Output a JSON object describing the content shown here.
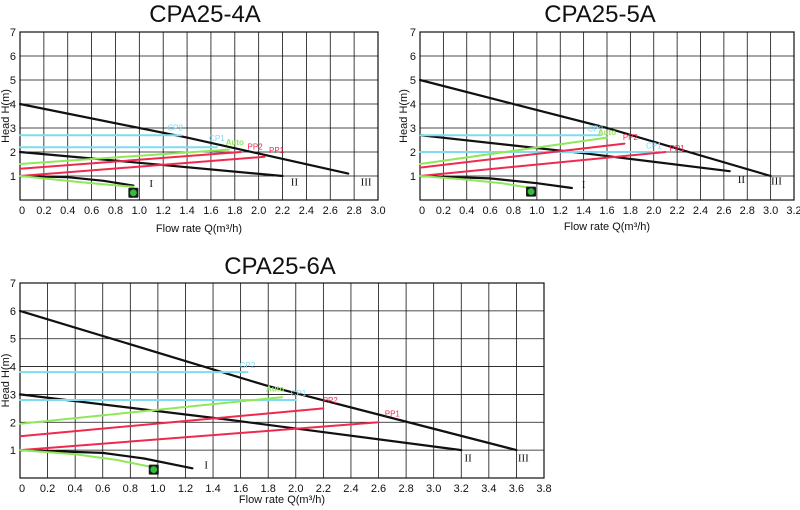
{
  "colors": {
    "speed_curve": "#111111",
    "cp": "#7fdcf0",
    "pp": "#ef2a4f",
    "auto": "#8fe85a",
    "grid": "#111111",
    "icon": "#2fbf3a"
  },
  "icons": [
    "green-led-icon"
  ],
  "chart_data": [
    {
      "type": "line",
      "title": "CPA25-4A",
      "xlabel": "Flow rate Q(m³/h)",
      "ylabel": "Head H(m)",
      "xlim": [
        0,
        3.0
      ],
      "ylim": [
        0,
        7
      ],
      "grid": true,
      "xticks": [
        "0",
        "0.2",
        "0.4",
        "0.6",
        "0.8",
        "1.0",
        "1.2",
        "1.4",
        "1.6",
        "1.8",
        "2.0",
        "2.2",
        "2.4",
        "2.6",
        "2.8",
        "3.0"
      ],
      "yticks": [
        "1",
        "2",
        "3",
        "4",
        "5",
        "6",
        "7"
      ],
      "series": [
        {
          "name": "I",
          "kind": "speed",
          "points": [
            [
              0,
              1.0
            ],
            [
              0.4,
              0.95
            ],
            [
              0.7,
              0.8
            ],
            [
              0.95,
              0.6
            ]
          ]
        },
        {
          "name": "II",
          "kind": "speed",
          "points": [
            [
              0,
              2.0
            ],
            [
              1.0,
              1.55
            ],
            [
              2.2,
              1.0
            ]
          ]
        },
        {
          "name": "III",
          "kind": "speed",
          "points": [
            [
              0,
              4.0
            ],
            [
              1.4,
              2.6
            ],
            [
              2.75,
              1.1
            ]
          ]
        },
        {
          "name": "CP2",
          "kind": "cp",
          "points": [
            [
              0,
              2.7
            ],
            [
              1.35,
              2.7
            ]
          ]
        },
        {
          "name": "CP1",
          "kind": "cp",
          "points": [
            [
              0,
              2.2
            ],
            [
              1.65,
              2.2
            ]
          ]
        },
        {
          "name": "Auto",
          "kind": "auto",
          "points": [
            [
              0,
              1.5
            ],
            [
              1.75,
              2.1
            ]
          ]
        },
        {
          "name": "PP2",
          "kind": "pp",
          "points": [
            [
              0,
              1.3
            ],
            [
              1.85,
              2.0
            ]
          ]
        },
        {
          "name": "PP1",
          "kind": "pp",
          "points": [
            [
              0,
              1.0
            ],
            [
              2.05,
              1.8
            ]
          ]
        },
        {
          "name": "",
          "kind": "auto",
          "points": [
            [
              0,
              1.0
            ],
            [
              0.3,
              0.85
            ],
            [
              0.6,
              0.7
            ],
            [
              0.95,
              0.55
            ]
          ]
        }
      ],
      "labels": [
        {
          "text": "CP2",
          "x": 1.3,
          "y": 2.9,
          "kind": "cp"
        },
        {
          "text": "CP1",
          "x": 1.65,
          "y": 2.45,
          "kind": "cp"
        },
        {
          "text": "Auto",
          "x": 1.8,
          "y": 2.3,
          "kind": "auto"
        },
        {
          "text": "PP2",
          "x": 1.97,
          "y": 2.1,
          "kind": "pp"
        },
        {
          "text": "PP1",
          "x": 2.15,
          "y": 1.95,
          "kind": "pp"
        },
        {
          "text": "I",
          "x": 1.1,
          "y": 0.55,
          "kind": "roman"
        },
        {
          "text": "II",
          "x": 2.3,
          "y": 0.6,
          "kind": "roman"
        },
        {
          "text": "III",
          "x": 2.9,
          "y": 0.6,
          "kind": "roman"
        }
      ],
      "marker": {
        "x": 0.95,
        "y": 0.3
      }
    },
    {
      "type": "line",
      "title": "CPA25-5A",
      "xlabel": "Flow rate Q(m³/h)",
      "ylabel": "Head H(m)",
      "xlim": [
        0,
        3.2
      ],
      "ylim": [
        0,
        7
      ],
      "grid": true,
      "xticks": [
        "0",
        "0.2",
        "0.4",
        "0.6",
        "0.8",
        "1.0",
        "1.2",
        "1.4",
        "1.6",
        "1.8",
        "2.0",
        "2.2",
        "2.4",
        "2.6",
        "2.8",
        "3.0",
        "3.2"
      ],
      "yticks": [
        "1",
        "2",
        "3",
        "4",
        "5",
        "6",
        "7"
      ],
      "series": [
        {
          "name": "I",
          "kind": "speed",
          "points": [
            [
              0,
              1.0
            ],
            [
              0.6,
              0.9
            ],
            [
              1.0,
              0.7
            ],
            [
              1.3,
              0.5
            ]
          ]
        },
        {
          "name": "II",
          "kind": "speed",
          "points": [
            [
              0,
              2.7
            ],
            [
              1.4,
              1.95
            ],
            [
              2.65,
              1.2
            ]
          ]
        },
        {
          "name": "III",
          "kind": "speed",
          "points": [
            [
              0,
              5.0
            ],
            [
              1.6,
              3.0
            ],
            [
              3.0,
              1.0
            ]
          ]
        },
        {
          "name": "CP2",
          "kind": "cp",
          "points": [
            [
              0,
              2.7
            ],
            [
              1.55,
              2.7
            ]
          ]
        },
        {
          "name": "CP1",
          "kind": "cp",
          "points": [
            [
              0,
              2.0
            ],
            [
              2.05,
              2.0
            ]
          ]
        },
        {
          "name": "Auto",
          "kind": "auto",
          "points": [
            [
              0,
              1.5
            ],
            [
              1.6,
              2.6
            ]
          ]
        },
        {
          "name": "PP2",
          "kind": "pp",
          "points": [
            [
              0,
              1.35
            ],
            [
              1.75,
              2.35
            ]
          ]
        },
        {
          "name": "PP1",
          "kind": "pp",
          "points": [
            [
              0,
              1.0
            ],
            [
              2.1,
              2.0
            ]
          ]
        },
        {
          "name": "",
          "kind": "auto",
          "points": [
            [
              0,
              1.0
            ],
            [
              0.4,
              0.85
            ],
            [
              0.7,
              0.7
            ],
            [
              0.95,
              0.5
            ]
          ]
        }
      ],
      "labels": [
        {
          "text": "CP2",
          "x": 1.5,
          "y": 2.85,
          "kind": "cp"
        },
        {
          "text": "Auto",
          "x": 1.6,
          "y": 2.7,
          "kind": "auto"
        },
        {
          "text": "PP2",
          "x": 1.8,
          "y": 2.5,
          "kind": "pp"
        },
        {
          "text": "CP1",
          "x": 2.0,
          "y": 2.15,
          "kind": "cp"
        },
        {
          "text": "PP1",
          "x": 2.2,
          "y": 2.05,
          "kind": "pp"
        },
        {
          "text": "I",
          "x": 1.4,
          "y": 0.5,
          "kind": "roman"
        },
        {
          "text": "II",
          "x": 2.75,
          "y": 0.7,
          "kind": "roman"
        },
        {
          "text": "III",
          "x": 3.05,
          "y": 0.65,
          "kind": "roman"
        }
      ],
      "marker": {
        "x": 0.95,
        "y": 0.35
      }
    },
    {
      "type": "line",
      "title": "CPA25-6A",
      "xlabel": "Flow rate Q(m³/h)",
      "ylabel": "Head H(m)",
      "xlim": [
        0,
        3.8
      ],
      "ylim": [
        0,
        7
      ],
      "grid": true,
      "xticks": [
        "0",
        "0.2",
        "0.4",
        "0.6",
        "0.8",
        "1.0",
        "1.2",
        "1.4",
        "1.6",
        "1.8",
        "2.0",
        "2.2",
        "2.4",
        "2.6",
        "2.8",
        "3.0",
        "3.2",
        "3.4",
        "3.6",
        "3.8"
      ],
      "yticks": [
        "1",
        "2",
        "3",
        "4",
        "5",
        "6",
        "7"
      ],
      "series": [
        {
          "name": "I",
          "kind": "speed",
          "points": [
            [
              0,
              1.0
            ],
            [
              0.6,
              0.9
            ],
            [
              0.9,
              0.7
            ],
            [
              1.25,
              0.35
            ]
          ]
        },
        {
          "name": "II",
          "kind": "speed",
          "points": [
            [
              0,
              3.0
            ],
            [
              1.5,
              2.1
            ],
            [
              3.2,
              1.0
            ]
          ]
        },
        {
          "name": "III",
          "kind": "speed",
          "points": [
            [
              0,
              6.0
            ],
            [
              1.8,
              3.3
            ],
            [
              3.6,
              1.0
            ]
          ]
        },
        {
          "name": "CP2",
          "kind": "cp",
          "points": [
            [
              0,
              3.8
            ],
            [
              1.65,
              3.8
            ]
          ]
        },
        {
          "name": "CP1",
          "kind": "cp",
          "points": [
            [
              0,
              2.8
            ],
            [
              2.0,
              2.8
            ]
          ]
        },
        {
          "name": "Auto",
          "kind": "auto",
          "points": [
            [
              0,
              1.95
            ],
            [
              1.9,
              2.9
            ]
          ]
        },
        {
          "name": "PP2",
          "kind": "pp",
          "points": [
            [
              0,
              1.5
            ],
            [
              2.2,
              2.5
            ]
          ]
        },
        {
          "name": "PP1",
          "kind": "pp",
          "points": [
            [
              0,
              1.0
            ],
            [
              2.6,
              2.0
            ]
          ]
        },
        {
          "name": "",
          "kind": "auto",
          "points": [
            [
              0,
              1.0
            ],
            [
              0.4,
              0.85
            ],
            [
              0.7,
              0.65
            ],
            [
              0.95,
              0.4
            ]
          ]
        }
      ],
      "labels": [
        {
          "text": "CP2",
          "x": 1.65,
          "y": 3.95,
          "kind": "cp"
        },
        {
          "text": "Auto",
          "x": 1.85,
          "y": 3.1,
          "kind": "auto"
        },
        {
          "text": "CP1",
          "x": 2.02,
          "y": 2.95,
          "kind": "cp"
        },
        {
          "text": "PP2",
          "x": 2.25,
          "y": 2.7,
          "kind": "pp"
        },
        {
          "text": "PP1",
          "x": 2.7,
          "y": 2.2,
          "kind": "pp"
        },
        {
          "text": "I",
          "x": 1.35,
          "y": 0.35,
          "kind": "roman"
        },
        {
          "text": "II",
          "x": 3.25,
          "y": 0.6,
          "kind": "roman"
        },
        {
          "text": "III",
          "x": 3.65,
          "y": 0.6,
          "kind": "roman"
        }
      ],
      "marker": {
        "x": 0.97,
        "y": 0.3
      }
    }
  ]
}
